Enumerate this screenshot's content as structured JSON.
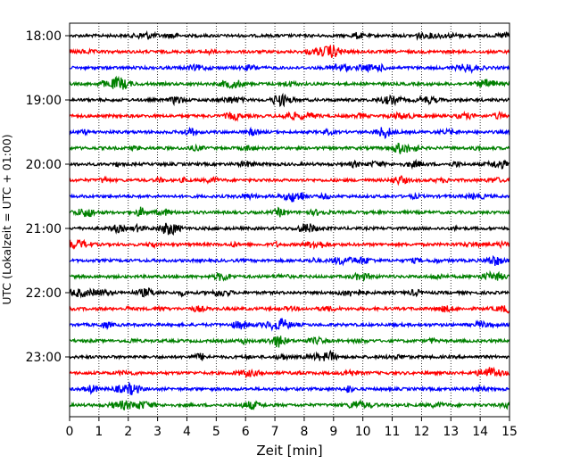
{
  "chart_data": {
    "type": "line",
    "title": "",
    "xlabel": "Zeit  [min]",
    "ylabel": "UTC (Lokalzeit = UTC + 01:00)",
    "xlim": [
      0,
      15
    ],
    "x_ticks": [
      "0",
      "1",
      "2",
      "3",
      "4",
      "5",
      "6",
      "7",
      "8",
      "9",
      "10",
      "11",
      "12",
      "13",
      "14",
      "15"
    ],
    "y_ticks": [
      "18:00",
      "19:00",
      "20:00",
      "21:00",
      "22:00",
      "23:00"
    ],
    "grid": "vertical dotted lines at each minute",
    "trace_interval_minutes": 15,
    "trace_colors": [
      "#000000",
      "#ff0000",
      "#0000ff",
      "#008000"
    ],
    "traces": [
      {
        "start": "18:00",
        "color": "#000000"
      },
      {
        "start": "18:15",
        "color": "#ff0000"
      },
      {
        "start": "18:30",
        "color": "#0000ff"
      },
      {
        "start": "18:45",
        "color": "#008000"
      },
      {
        "start": "19:00",
        "color": "#000000"
      },
      {
        "start": "19:15",
        "color": "#ff0000"
      },
      {
        "start": "19:30",
        "color": "#0000ff"
      },
      {
        "start": "19:45",
        "color": "#008000"
      },
      {
        "start": "20:00",
        "color": "#000000"
      },
      {
        "start": "20:15",
        "color": "#ff0000"
      },
      {
        "start": "20:30",
        "color": "#0000ff"
      },
      {
        "start": "20:45",
        "color": "#008000"
      },
      {
        "start": "21:00",
        "color": "#000000"
      },
      {
        "start": "21:15",
        "color": "#ff0000"
      },
      {
        "start": "21:30",
        "color": "#0000ff"
      },
      {
        "start": "21:45",
        "color": "#008000"
      },
      {
        "start": "22:00",
        "color": "#000000"
      },
      {
        "start": "22:15",
        "color": "#ff0000"
      },
      {
        "start": "22:30",
        "color": "#0000ff"
      },
      {
        "start": "22:45",
        "color": "#008000"
      },
      {
        "start": "23:00",
        "color": "#000000"
      },
      {
        "start": "23:15",
        "color": "#ff0000"
      },
      {
        "start": "23:30",
        "color": "#0000ff"
      },
      {
        "start": "23:45",
        "color": "#008000"
      }
    ]
  }
}
